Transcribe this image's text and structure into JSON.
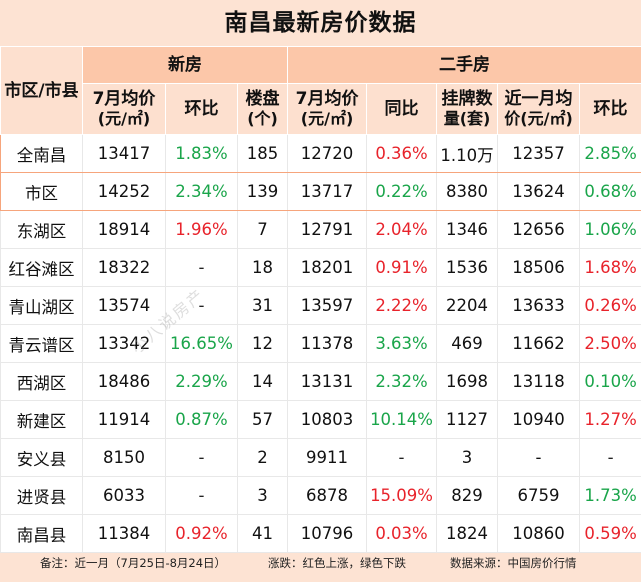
{
  "title": "南昌最新房价数据",
  "groups": {
    "new": "新房",
    "second": "二手房"
  },
  "columns": {
    "region": "市区/市县",
    "new_avg": "7月均价",
    "new_avg_unit": "(元/㎡)",
    "new_mom": "环比",
    "projects": "楼盘",
    "projects_unit": "(个)",
    "sec_avg": "7月均价",
    "sec_avg_unit": "(元/㎡)",
    "sec_yoy": "同比",
    "listings": "挂牌数",
    "listings_unit": "量(套)",
    "recent_avg": "近一月均",
    "recent_avg_unit": "价(元/㎡)",
    "sec_mom": "环比"
  },
  "rows": [
    {
      "region": "全南昌",
      "new_avg": "13417",
      "new_mom": "1.83%",
      "new_mom_dir": "down",
      "projects": "185",
      "sec_avg": "12720",
      "sec_yoy": "0.36%",
      "sec_yoy_dir": "up",
      "listings": "1.10万",
      "recent_avg": "12357",
      "sec_mom": "2.85%",
      "sec_mom_dir": "down"
    },
    {
      "region": "市区",
      "new_avg": "14252",
      "new_mom": "2.34%",
      "new_mom_dir": "down",
      "projects": "139",
      "sec_avg": "13717",
      "sec_yoy": "0.22%",
      "sec_yoy_dir": "down",
      "listings": "8380",
      "recent_avg": "13624",
      "sec_mom": "0.68%",
      "sec_mom_dir": "down"
    },
    {
      "region": "东湖区",
      "new_avg": "18914",
      "new_mom": "1.96%",
      "new_mom_dir": "up",
      "projects": "7",
      "sec_avg": "12791",
      "sec_yoy": "2.04%",
      "sec_yoy_dir": "up",
      "listings": "1346",
      "recent_avg": "12656",
      "sec_mom": "1.06%",
      "sec_mom_dir": "down"
    },
    {
      "region": "红谷滩区",
      "new_avg": "18322",
      "new_mom": "-",
      "new_mom_dir": "neutral",
      "projects": "18",
      "sec_avg": "18201",
      "sec_yoy": "0.91%",
      "sec_yoy_dir": "up",
      "listings": "1536",
      "recent_avg": "18506",
      "sec_mom": "1.68%",
      "sec_mom_dir": "up"
    },
    {
      "region": "青山湖区",
      "new_avg": "13574",
      "new_mom": "-",
      "new_mom_dir": "neutral",
      "projects": "31",
      "sec_avg": "13597",
      "sec_yoy": "2.22%",
      "sec_yoy_dir": "up",
      "listings": "2204",
      "recent_avg": "13633",
      "sec_mom": "0.26%",
      "sec_mom_dir": "up"
    },
    {
      "region": "青云谱区",
      "new_avg": "13342",
      "new_mom": "16.65%",
      "new_mom_dir": "down",
      "projects": "12",
      "sec_avg": "11378",
      "sec_yoy": "3.63%",
      "sec_yoy_dir": "down",
      "listings": "469",
      "recent_avg": "11662",
      "sec_mom": "2.50%",
      "sec_mom_dir": "up"
    },
    {
      "region": "西湖区",
      "new_avg": "18486",
      "new_mom": "2.29%",
      "new_mom_dir": "down",
      "projects": "14",
      "sec_avg": "13131",
      "sec_yoy": "2.32%",
      "sec_yoy_dir": "down",
      "listings": "1698",
      "recent_avg": "13118",
      "sec_mom": "0.10%",
      "sec_mom_dir": "down"
    },
    {
      "region": "新建区",
      "new_avg": "11914",
      "new_mom": "0.87%",
      "new_mom_dir": "down",
      "projects": "57",
      "sec_avg": "10803",
      "sec_yoy": "10.14%",
      "sec_yoy_dir": "down",
      "listings": "1127",
      "recent_avg": "10940",
      "sec_mom": "1.27%",
      "sec_mom_dir": "up"
    },
    {
      "region": "安义县",
      "new_avg": "8150",
      "new_mom": "-",
      "new_mom_dir": "neutral",
      "projects": "2",
      "sec_avg": "9911",
      "sec_yoy": "-",
      "sec_yoy_dir": "neutral",
      "listings": "3",
      "recent_avg": "-",
      "sec_mom": "-",
      "sec_mom_dir": "neutral"
    },
    {
      "region": "进贤县",
      "new_avg": "6033",
      "new_mom": "-",
      "new_mom_dir": "neutral",
      "projects": "3",
      "sec_avg": "6878",
      "sec_yoy": "15.09%",
      "sec_yoy_dir": "up",
      "listings": "829",
      "recent_avg": "6759",
      "sec_mom": "1.73%",
      "sec_mom_dir": "down"
    },
    {
      "region": "南昌县",
      "new_avg": "11384",
      "new_mom": "0.92%",
      "new_mom_dir": "up",
      "projects": "41",
      "sec_avg": "10796",
      "sec_yoy": "0.03%",
      "sec_yoy_dir": "up",
      "listings": "1824",
      "recent_avg": "10860",
      "sec_mom": "0.59%",
      "sec_mom_dir": "up"
    }
  ],
  "footer": {
    "note": "备注：近一月（7月25日-8月24日）",
    "legend": "涨跌：红色上涨，绿色下跌",
    "source": "数据来源：中国房价行情"
  },
  "watermark": {
    "diagonal": "小八说房产",
    "bottom": "头条号 / 小八说房产"
  },
  "colors": {
    "up": "#e8232b",
    "down": "#1aa54a",
    "header": "#fcc7a9",
    "subheader": "#fde0cf",
    "background": "#fde3d3",
    "highlight_border": "#f6a57c"
  }
}
